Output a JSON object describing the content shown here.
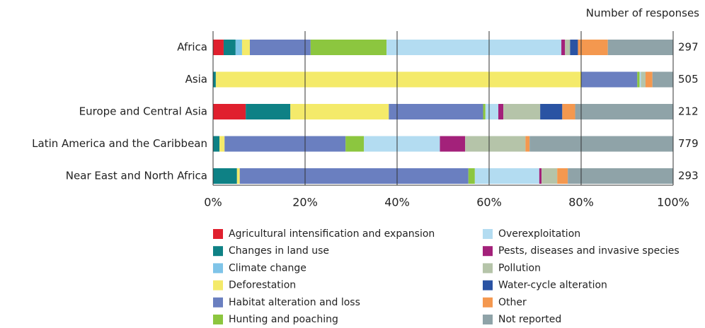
{
  "chart_data": {
    "type": "stacked_bar_horizontal",
    "right_label_title": "Number of responses",
    "categories": [
      "Africa",
      "Asia",
      "Europe and Central Asia",
      "Latin America and the Caribbean",
      "Near East and North Africa"
    ],
    "responses": [
      297,
      505,
      212,
      779,
      293
    ],
    "xlim": [
      0,
      100
    ],
    "xticks": [
      {
        "value": 0,
        "label": "0%"
      },
      {
        "value": 20,
        "label": "20%"
      },
      {
        "value": 40,
        "label": "40%"
      },
      {
        "value": 60,
        "label": "60%"
      },
      {
        "value": 80,
        "label": "80%"
      },
      {
        "value": 100,
        "label": "100%"
      }
    ],
    "grid": true,
    "series": [
      {
        "name": "Agricultural intensification and expansion",
        "color": "#e0202e",
        "values": [
          2.3,
          0,
          7.1,
          0,
          0
        ]
      },
      {
        "name": "Changes in land use",
        "color": "#0e8185",
        "values": [
          2.6,
          0.6,
          9.7,
          1.4,
          5.2
        ]
      },
      {
        "name": "Climate change",
        "color": "#7fc4e8",
        "values": [
          1.4,
          0,
          0,
          0,
          0
        ]
      },
      {
        "name": "Deforestation",
        "color": "#f4ea6a",
        "values": [
          1.7,
          79.4,
          21.4,
          1.1,
          0.6
        ]
      },
      {
        "name": "Habitat alteration and loss",
        "color": "#6a7fc0",
        "values": [
          13.2,
          12.2,
          20.5,
          26.3,
          49.7
        ]
      },
      {
        "name": "Hunting and poaching",
        "color": "#8cc63f",
        "values": [
          16.5,
          0.5,
          0.5,
          4.0,
          1.4
        ]
      },
      {
        "name": "Overexploitation",
        "color": "#b3dcf1",
        "values": [
          38,
          0.3,
          2.8,
          16.5,
          14.0
        ]
      },
      {
        "name": "Pests, diseases and invasive species",
        "color": "#a3217a",
        "values": [
          0.8,
          0,
          1.1,
          5.5,
          0.5
        ]
      },
      {
        "name": "Pollution",
        "color": "#b5c4a9",
        "values": [
          1.1,
          1.0,
          8.0,
          13.1,
          3.4
        ]
      },
      {
        "name": "Water-cycle alteration",
        "color": "#2a53a3",
        "values": [
          1.7,
          0,
          4.8,
          0,
          0
        ]
      },
      {
        "name": "Other",
        "color": "#f4984f",
        "values": [
          6.5,
          1.5,
          2.8,
          0.9,
          2.3
        ]
      },
      {
        "name": "Not reported",
        "color": "#8fa3a8",
        "values": [
          14.2,
          4.5,
          21.3,
          31.2,
          22.9
        ]
      }
    ]
  }
}
